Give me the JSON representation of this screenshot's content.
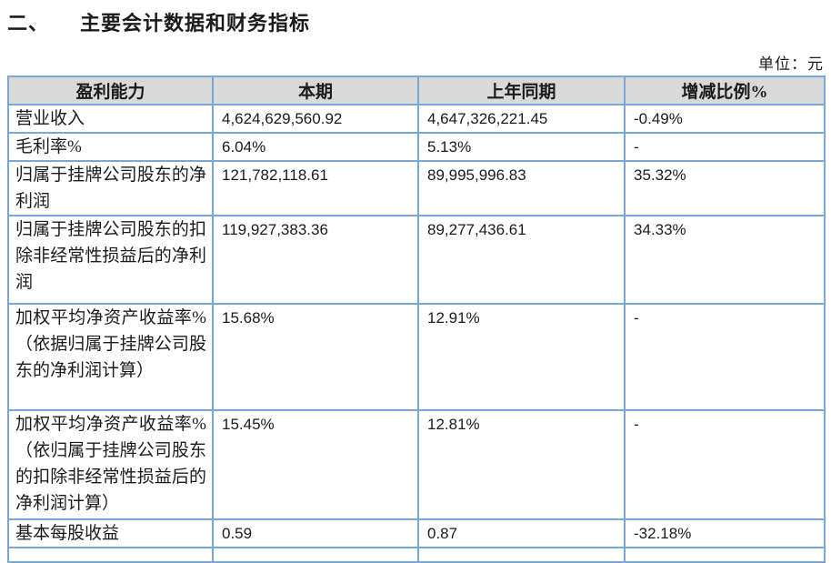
{
  "page": {
    "section_number": "二、",
    "title": "主要会计数据和财务指标",
    "unit_label": "单位：元"
  },
  "colors": {
    "table_border": "#7ba7d7",
    "header_background": "#d9d9d9",
    "text": "#1b1b1b"
  },
  "table": {
    "headers": [
      "盈利能力",
      "本期",
      "上年同期",
      "增减比例%"
    ],
    "rows": [
      {
        "label": "营业收入",
        "current": "4,624,629,560.92",
        "prior": "4,647,326,221.45",
        "change": "-0.49%"
      },
      {
        "label": "毛利率%",
        "current": "6.04%",
        "prior": "5.13%",
        "change": "-"
      },
      {
        "label": "归属于挂牌公司股东的净利润",
        "current": "121,782,118.61",
        "prior": "89,995,996.83",
        "change": "35.32%"
      },
      {
        "label": "归属于挂牌公司股东的扣除非经常性损益后的净利润",
        "current": "119,927,383.36",
        "prior": "89,277,436.61",
        "change": "34.33%"
      },
      {
        "label": "加权平均净资产收益率%（依据归属于挂牌公司股东的净利润计算）",
        "current": "15.68%",
        "prior": "12.91%",
        "change": "-"
      },
      {
        "label": "加权平均净资产收益率%（依归属于挂牌公司股东的扣除非经常性损益后的净利润计算）",
        "current": "15.45%",
        "prior": "12.81%",
        "change": "-"
      },
      {
        "label": "基本每股收益",
        "current": "0.59",
        "prior": "0.87",
        "change": "-32.18%"
      }
    ]
  }
}
